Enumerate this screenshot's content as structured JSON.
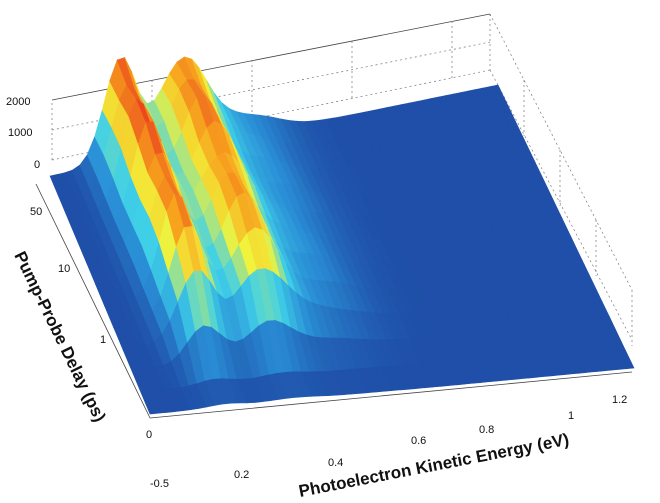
{
  "chart_data": {
    "type": "surface",
    "title": "",
    "xlabel": "Photoelectron Kinetic Energy (eV)",
    "ylabel": "Pump-Probe Delay (ps)",
    "zlabel": "",
    "xlim": [
      0.1,
      1.2
    ],
    "zlim": [
      0,
      2000
    ],
    "y_scale": "linear below 1 ps, logarithmic above 1 ps",
    "x_ticks": [
      "0.2",
      "0.4",
      "0.6",
      "0.8",
      "1",
      "1.2"
    ],
    "y_ticks": [
      "-0.5",
      "0",
      "1",
      "10",
      "50"
    ],
    "z_ticks": [
      "0",
      "1000",
      "2000"
    ],
    "colormap": [
      "#1f4fa8",
      "#2a8fd6",
      "#3fd0e8",
      "#f2f23a",
      "#f7a21e",
      "#e8301e"
    ],
    "grid": true,
    "delays_ps": [
      -0.5,
      -0.25,
      0,
      0.25,
      0.5,
      0.75,
      1,
      2,
      5,
      10,
      20,
      50
    ],
    "peaks_eV": [
      0.27,
      0.42
    ],
    "peak_heights": [
      1900,
      1600
    ],
    "signal_vs_delay": [
      0.03,
      0.05,
      0.35,
      0.7,
      0.85,
      0.92,
      0.95,
      0.97,
      0.98,
      0.99,
      1.0,
      1.0
    ]
  }
}
